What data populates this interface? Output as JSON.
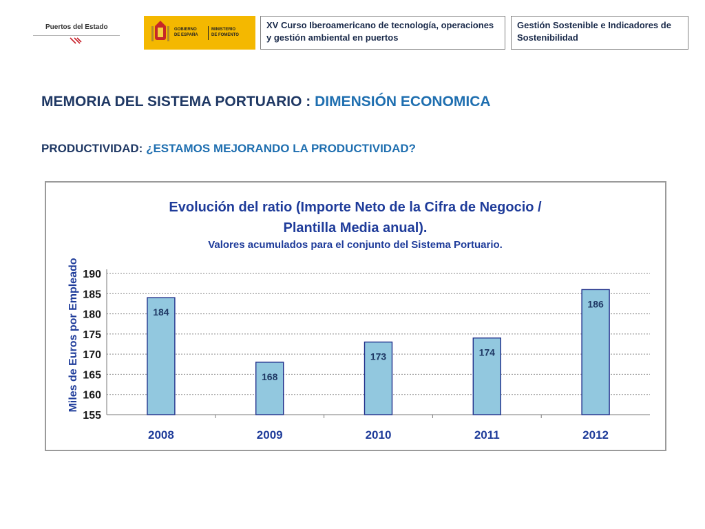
{
  "header": {
    "logo_puertos": "Puertos del Estado",
    "logo_gobierno": [
      "GOBIERNO",
      "DE ESPAÑA"
    ],
    "logo_ministerio": [
      "MINISTERIO",
      "DE FOMENTO"
    ],
    "course_box": "XV Curso Iberoamericano de tecnología, operaciones y gestión ambiental en puertos",
    "topic_box": "Gestión Sostenible e Indicadores de Sostenibilidad"
  },
  "main": {
    "title_prefix": "MEMORIA DEL SISTEMA PORTUARIO : ",
    "title_highlight": "DIMENSIÓN ECONOMICA",
    "subtitle_prefix": "PRODUCTIVIDAD: ",
    "subtitle_highlight": "¿ESTAMOS MEJORANDO LA PRODUCTIVIDAD?"
  },
  "colors": {
    "bar_fill": "#92c8df",
    "bar_stroke": "#1f2f8a",
    "text_dark": "#1f3864",
    "accent": "#1f6fb0",
    "axis_label": "#1f3c9a"
  },
  "chart_data": {
    "type": "bar",
    "title": [
      "Evolución del ratio (Importe Neto de la Cifra de Negocio /",
      "Plantilla Media anual)."
    ],
    "subtitle": "Valores acumulados para el conjunto del Sistema Portuario.",
    "ylabel": "Miles de Euros por Empleado",
    "xlabel": "",
    "categories": [
      "2008",
      "2009",
      "2010",
      "2011",
      "2012"
    ],
    "values": [
      184,
      168,
      173,
      174,
      186
    ],
    "data_labels": [
      "184",
      "168",
      "173",
      "174",
      "186"
    ],
    "ylim": [
      155,
      190
    ],
    "yticks": [
      155,
      160,
      165,
      170,
      175,
      180,
      185,
      190
    ],
    "grid": true,
    "legend": "none"
  }
}
